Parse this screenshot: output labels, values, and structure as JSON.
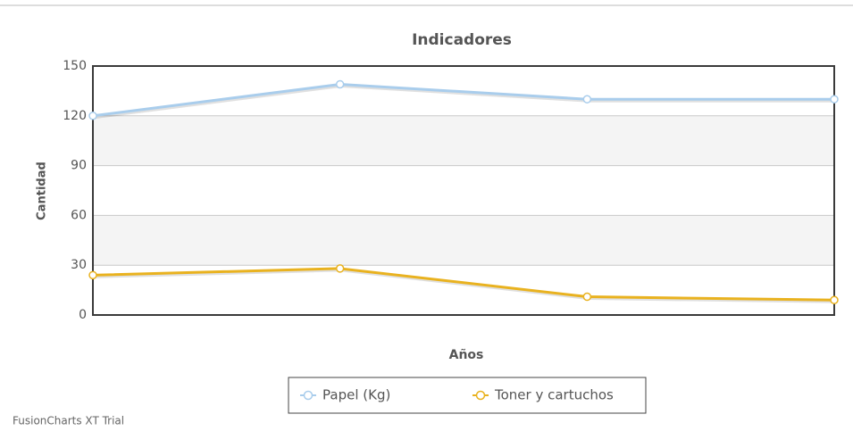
{
  "chart_data": {
    "type": "line",
    "title": "Indicadores",
    "y_label": "Cantidad",
    "x_label": "Años",
    "categories": [
      null,
      null,
      null,
      null
    ],
    "series": [
      {
        "name": "Papel (Kg)",
        "color": "#a9cdec",
        "values": [
          120,
          139,
          130,
          130
        ]
      },
      {
        "name": "Toner y cartuchos",
        "color": "#e9b21f",
        "values": [
          24,
          28,
          11,
          9
        ]
      }
    ],
    "ylim": [
      0,
      150
    ],
    "yticks": [
      0,
      30,
      60,
      90,
      120,
      150
    ],
    "grid": true,
    "legend": "bottom",
    "footer": "FusionCharts XT Trial"
  }
}
